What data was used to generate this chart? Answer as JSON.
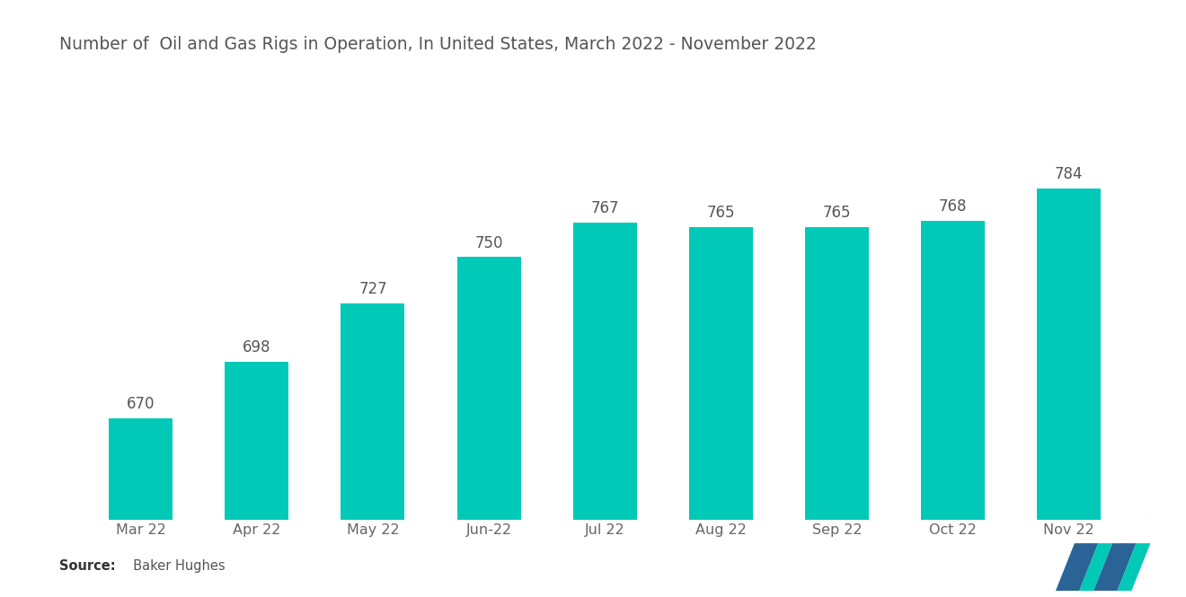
{
  "title": "Number of  Oil and Gas Rigs in Operation, In United States, March 2022 - November 2022",
  "categories": [
    "Mar 22",
    "Apr 22",
    "May 22",
    "Jun-22",
    "Jul 22",
    "Aug 22",
    "Sep 22",
    "Oct 22",
    "Nov 22"
  ],
  "values": [
    670,
    698,
    727,
    750,
    767,
    765,
    765,
    768,
    784
  ],
  "bar_color": "#00C9B8",
  "background_color": "#ffffff",
  "title_fontsize": 13.5,
  "label_fontsize": 12,
  "tick_fontsize": 11.5,
  "source_label_bold": "Source:",
  "source_label_normal": "  Baker Hughes",
  "ylim_min": 620,
  "ylim_max": 830,
  "bar_width": 0.55,
  "logo_blue": "#2A6496",
  "logo_teal": "#00C9B8"
}
